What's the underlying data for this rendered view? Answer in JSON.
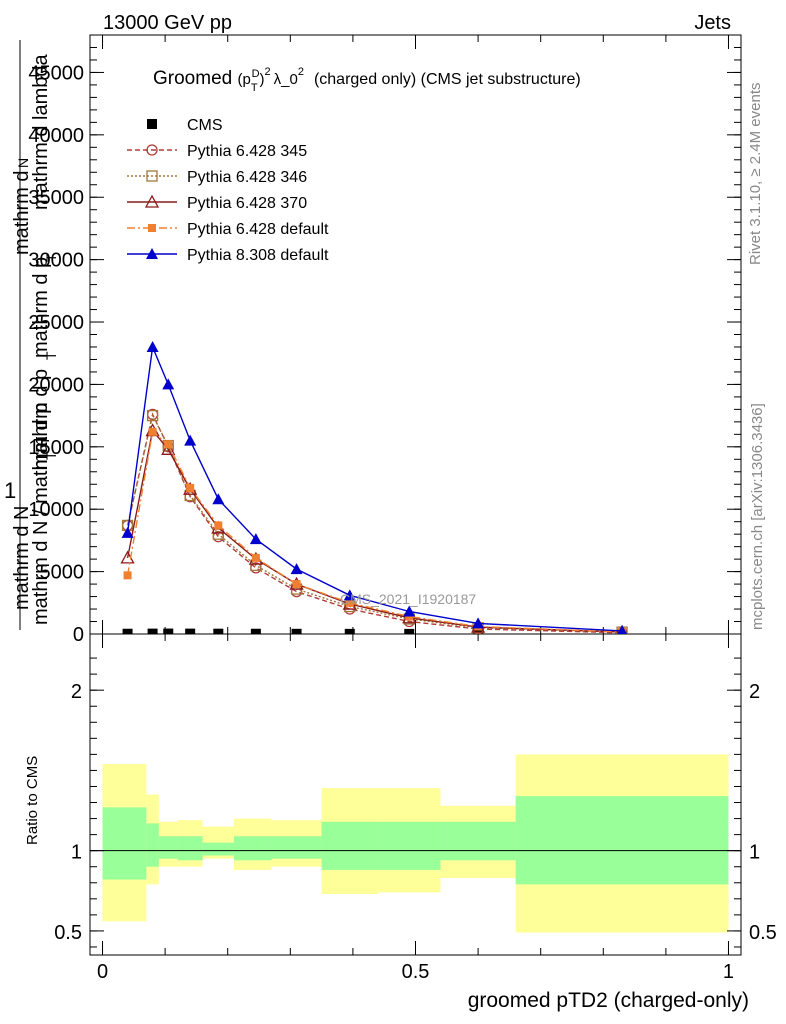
{
  "header": {
    "left": "13000 GeV pp",
    "right": "Jets"
  },
  "side_labels": {
    "rivet": "Rivet 3.1.10, ≥ 2.4M events",
    "mcplots": "mcplots.cern.ch [arXiv:1306.3436]"
  },
  "chart_data": {
    "type": "line",
    "title_prefix": "Groomed",
    "title_symbol": "(p",
    "title_sub": "T",
    "title_sup": "D",
    "title_suffix": ")",
    "title_sup2": "2",
    "title_lambda": "λ_0",
    "title_sup3": "2",
    "title_rest": "(charged only) (CMS jet substructure)",
    "ylabel_numerator": "mathrm d",
    "ylabel_numerator_sup": "2",
    "ylabel_numerator_n": "N",
    "ylabel_denominator": "mathrm d p",
    "ylabel_full_top": "mathrm d",
    "ylabel_full_top2": "N",
    "ylabel_one": "1",
    "ylabel_lines": [
      "mathrm d",
      "N",
      "mathrm d p",
      "T",
      "mathrm d lambda",
      "mathrm d p",
      "T",
      "mathrm d N / mathrm d p",
      "T",
      "mathrm d N"
    ],
    "xlabel": "groomed pTD2 (charged-only)",
    "analysis_label": "CMS_2021_I1920187",
    "ratio_ylabel": "Ratio to CMS",
    "xlim": [
      -0.02,
      1.02
    ],
    "ylim": [
      0,
      48000
    ],
    "ratio_ylim": [
      0.35,
      2.35
    ],
    "x_ticks": [
      "0",
      "0.5",
      "1"
    ],
    "y_ticks": [
      "0",
      "5000",
      "10000",
      "15000",
      "20000",
      "25000",
      "30000",
      "35000",
      "40000",
      "45000"
    ],
    "ratio_ticks": [
      "0.5",
      "1",
      "2"
    ],
    "x": [
      0.04,
      0.08,
      0.105,
      0.14,
      0.185,
      0.245,
      0.31,
      0.395,
      0.49,
      0.6,
      0.83
    ],
    "series": [
      {
        "name": "CMS",
        "color": "#000000",
        "marker": "square-filled",
        "values": [
          20,
          30,
          35,
          30,
          25,
          20,
          15,
          10,
          8,
          5,
          2
        ]
      },
      {
        "name": "Pythia 6.428 345",
        "color": "#b03a3a",
        "marker": "circle-open",
        "dash": "5,3",
        "values": [
          8700,
          17600,
          15000,
          11000,
          7800,
          5300,
          3400,
          2000,
          1000,
          400,
          100
        ]
      },
      {
        "name": "Pythia 6.428 346",
        "color": "#a0783c",
        "marker": "square-open",
        "dash": "2,2",
        "values": [
          8700,
          17500,
          15100,
          11100,
          8000,
          5500,
          3600,
          2200,
          1200,
          500,
          150
        ]
      },
      {
        "name": "Pythia 6.428 370",
        "color": "#8b1a1a",
        "marker": "triangle-open",
        "dash": "",
        "values": [
          6100,
          16300,
          14800,
          11600,
          8500,
          6000,
          4000,
          2400,
          1300,
          550,
          150
        ]
      },
      {
        "name": "Pythia 6.428 default",
        "color": "#f08030",
        "marker": "square-small",
        "dash": "8,3,2,3",
        "values": [
          4700,
          16200,
          15200,
          11700,
          8700,
          6100,
          4000,
          2500,
          1400,
          600,
          160
        ]
      },
      {
        "name": "Pythia 8.308 default",
        "color": "#0000cc",
        "marker": "triangle-filled",
        "dash": "",
        "values": [
          8100,
          23000,
          20000,
          15500,
          10800,
          7600,
          5200,
          3100,
          1800,
          850,
          250
        ]
      }
    ],
    "ratio_bands": {
      "bins": [
        [
          0.0,
          0.07
        ],
        [
          0.07,
          0.09
        ],
        [
          0.09,
          0.12
        ],
        [
          0.12,
          0.16
        ],
        [
          0.16,
          0.21
        ],
        [
          0.21,
          0.27
        ],
        [
          0.27,
          0.35
        ],
        [
          0.35,
          0.44
        ],
        [
          0.44,
          0.54
        ],
        [
          0.54,
          0.66
        ],
        [
          0.66,
          1.0
        ]
      ],
      "yellow_lo": [
        0.56,
        0.79,
        0.9,
        0.9,
        0.95,
        0.88,
        0.9,
        0.73,
        0.74,
        0.83,
        0.49
      ],
      "yellow_hi": [
        1.54,
        1.35,
        1.18,
        1.19,
        1.15,
        1.2,
        1.19,
        1.39,
        1.39,
        1.28,
        1.6
      ],
      "green_lo": [
        0.82,
        0.9,
        0.95,
        0.94,
        0.97,
        0.94,
        0.95,
        0.88,
        0.88,
        0.94,
        0.79
      ],
      "green_hi": [
        1.27,
        1.17,
        1.09,
        1.09,
        1.05,
        1.09,
        1.09,
        1.18,
        1.18,
        1.18,
        1.34
      ]
    }
  }
}
